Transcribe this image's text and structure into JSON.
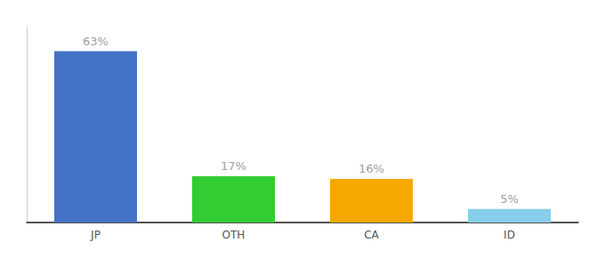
{
  "chart_data": {
    "type": "bar",
    "categories": [
      "JP",
      "OTH",
      "CA",
      "ID"
    ],
    "values": [
      63,
      17,
      16,
      5
    ],
    "value_labels": [
      "63%",
      "17%",
      "16%",
      "5%"
    ],
    "colors": [
      "#4472c4",
      "#33cc33",
      "#f5a800",
      "#87ceeb"
    ],
    "ylim": [
      0,
      72
    ],
    "data_labels": true,
    "tick_labels": "x",
    "grid": false
  }
}
